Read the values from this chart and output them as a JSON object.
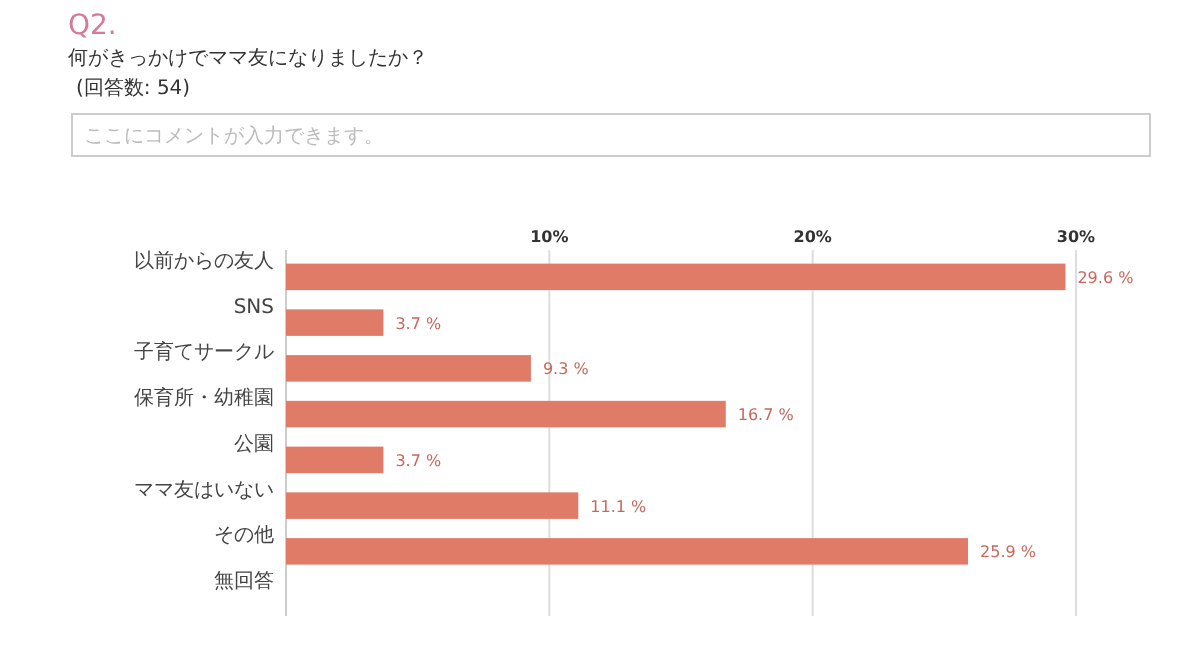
{
  "chart_data": {
    "type": "bar",
    "orientation": "horizontal",
    "title": "Q2.",
    "subtitle": "何がきっかけでママ友になりましたか？",
    "annotations": [
      "(回答数: 54)",
      "ここにコメントが入力できます。"
    ],
    "categories": [
      "以前からの友人",
      "SNS",
      "子育てサークル",
      "保育所・幼稚園",
      "公園",
      "ママ友はいない",
      "その他",
      "無回答"
    ],
    "values": [
      29.6,
      3.7,
      9.3,
      16.7,
      3.7,
      11.1,
      25.9,
      0
    ],
    "value_labels": [
      "29.6 %",
      "3.7 %",
      "9.3 %",
      "16.7 %",
      "3.7 %",
      "11.1 %",
      "25.9 %",
      null
    ],
    "color": "#e07b67",
    "xlim": [
      0,
      30
    ],
    "xticks": [
      {
        "value": 10,
        "label": "10%"
      },
      {
        "value": 20,
        "label": "20%"
      },
      {
        "value": 30,
        "label": "30%"
      }
    ],
    "grid": "x"
  }
}
